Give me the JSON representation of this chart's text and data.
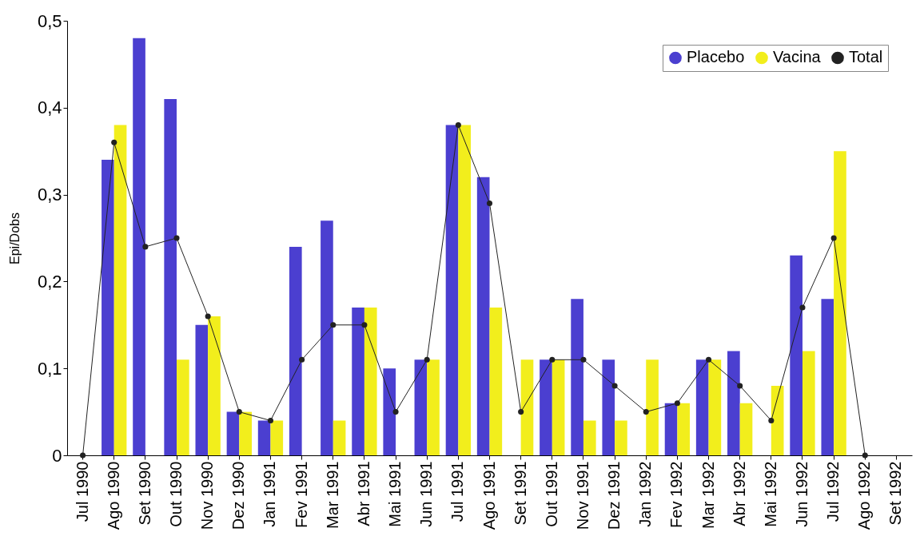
{
  "chart_data": {
    "type": "bar",
    "ylabel": "Epi/Dobs",
    "categories": [
      "Jul 1990",
      "Ago 1990",
      "Set 1990",
      "Out 1990",
      "Nov 1990",
      "Dez 1990",
      "Jan 1991",
      "Fev 1991",
      "Mar 1991",
      "Abr 1991",
      "Mai 1991",
      "Jun 1991",
      "Jul 1991",
      "Ago 1991",
      "Set 1991",
      "Out 1991",
      "Nov 1991",
      "Dez 1991",
      "Jan 1992",
      "Fev 1992",
      "Mar 1992",
      "Abr 1992",
      "Mai 1992",
      "Jun 1992",
      "Jul 1992",
      "Ago 1992",
      "Set 1992"
    ],
    "series": [
      {
        "name": "Placebo",
        "type": "bar",
        "color": "#4b3fd0",
        "values": [
          0,
          0.34,
          0.48,
          0.41,
          0.15,
          0.05,
          0.04,
          0.24,
          0.27,
          0.17,
          0.1,
          0.11,
          0.38,
          0.32,
          0,
          0.11,
          0.18,
          0.11,
          0,
          0.06,
          0.11,
          0.12,
          0,
          0.23,
          0.18,
          0,
          null
        ]
      },
      {
        "name": "Vacina",
        "type": "bar",
        "color": "#f2ee1c",
        "values": [
          0,
          0.38,
          0,
          0.11,
          0.16,
          0.05,
          0.04,
          0,
          0.04,
          0.17,
          0,
          0.11,
          0.38,
          0.17,
          0.11,
          0.11,
          0.04,
          0.04,
          0.11,
          0.06,
          0.11,
          0.06,
          0.08,
          0.12,
          0.35,
          0,
          null
        ]
      },
      {
        "name": "Total",
        "type": "line",
        "color": "#222222",
        "values": [
          0,
          0.36,
          0.24,
          0.25,
          0.16,
          0.05,
          0.04,
          0.11,
          0.15,
          0.15,
          0.05,
          0.11,
          0.38,
          0.29,
          0.05,
          0.11,
          0.11,
          0.08,
          0.05,
          0.06,
          0.11,
          0.08,
          0.04,
          0.17,
          0.25,
          0,
          null
        ]
      }
    ],
    "ylim": [
      0,
      0.5
    ],
    "yticks": [
      0,
      {
        "value": 0.1,
        "label": "0,1"
      },
      {
        "value": 0.2,
        "label": "0,2"
      },
      {
        "value": 0.3,
        "label": "0,3"
      },
      {
        "value": 0.4,
        "label": "0,4"
      },
      {
        "value": 0.5,
        "label": "0,5"
      }
    ],
    "legend": "top right",
    "marker": "circle",
    "line_style": "solid"
  }
}
